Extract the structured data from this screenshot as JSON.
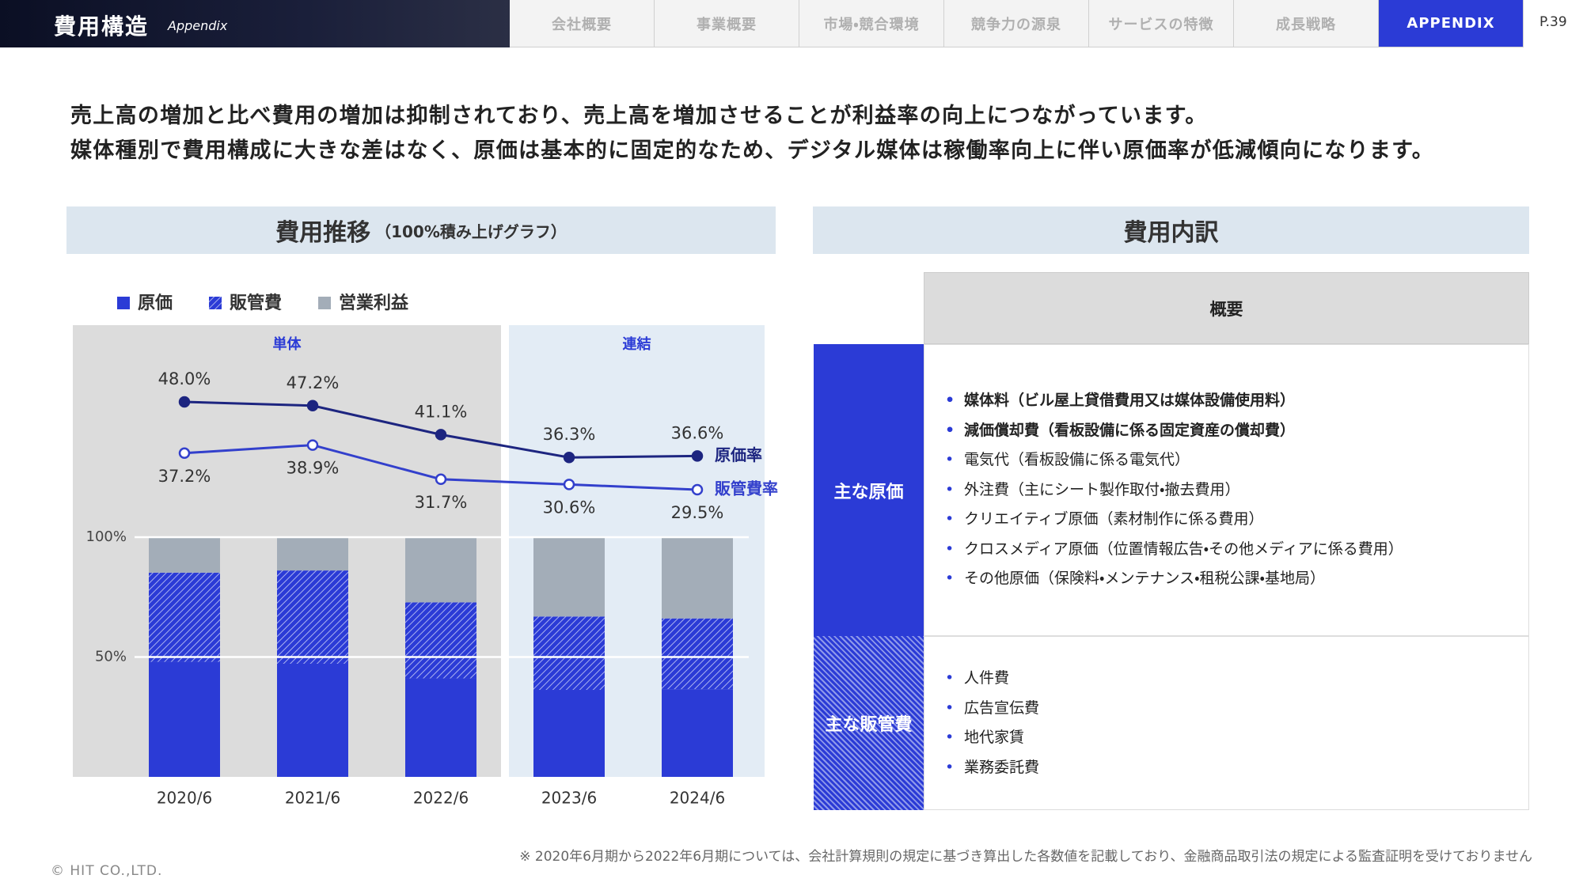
{
  "header": {
    "title": "費用構造",
    "subtitle": "Appendix",
    "page": "P.39",
    "tabs": [
      "会社概要",
      "事業概要",
      "市場・競合環境",
      "競争力の源泉",
      "サービスの特徴",
      "成長戦略",
      "APPENDIX"
    ],
    "active_tab": 6
  },
  "headline": [
    "売上高の増加と比べ費用の増加は抑制されており、売上高を増加させることが利益率の向上につながっています。",
    "媒体種別で費用構成に大きな差はなく、原価は基本的に固定的なため、デジタル媒体は稼働率向上に伴い原価率が低減傾向になります。"
  ],
  "chart_data": {
    "type": "bar",
    "stacked": true,
    "title": "費用推移",
    "subtitle": "（100%積み上げグラフ）",
    "categories": [
      "2020/6",
      "2021/6",
      "2022/6",
      "2023/6",
      "2024/6"
    ],
    "series": [
      {
        "name": "原価",
        "color": "#2b3bd6",
        "values": [
          48.0,
          47.2,
          41.1,
          36.3,
          36.6
        ]
      },
      {
        "name": "販管費",
        "color": "#2b3bd6",
        "pattern": "hatch",
        "values": [
          37.2,
          38.9,
          31.7,
          30.6,
          29.5
        ]
      },
      {
        "name": "営業利益",
        "color": "#a3adb8",
        "values": [
          14.8,
          13.9,
          27.2,
          33.1,
          33.9
        ]
      },
      {
        "name": "原価率",
        "type": "line",
        "color": "#1d2580",
        "marker": "filled",
        "label_position": "above",
        "values": [
          48.0,
          47.2,
          41.1,
          36.3,
          36.6
        ],
        "value_labels": [
          "48.0%",
          "47.2%",
          "41.1%",
          "36.3%",
          "36.6%"
        ]
      },
      {
        "name": "販管費率",
        "type": "line",
        "color": "#3340cc",
        "marker": "open",
        "label_position": "below",
        "values": [
          37.2,
          38.9,
          31.7,
          30.6,
          29.5
        ],
        "value_labels": [
          "37.2%",
          "38.9%",
          "31.7%",
          "30.6%",
          "29.5%"
        ]
      }
    ],
    "ylim": [
      0,
      100
    ],
    "yticks": [
      {
        "value": 50,
        "label": "50%"
      },
      {
        "value": 100,
        "label": "100%"
      }
    ],
    "grid": true,
    "regions": [
      {
        "label": "単体",
        "from": 0,
        "to": 2,
        "color": "#dcdcdc"
      },
      {
        "label": "連結",
        "from": 3,
        "to": 4,
        "color": "#e3ecf5"
      }
    ]
  },
  "breakdown": {
    "title": "費用内訳",
    "column": "概要",
    "rows": [
      {
        "label": "主な原価",
        "items": [
          {
            "text": "媒体料（ビル屋上貸借費用又は媒体設備使用料）",
            "bold": true
          },
          {
            "text": "減価償却費（看板設備に係る固定資産の償却費）",
            "bold": true
          },
          {
            "text": "電気代（看板設備に係る電気代）",
            "bold": false
          },
          {
            "text": "外注費（主にシート製作取付・撤去費用）",
            "bold": false
          },
          {
            "text": "クリエイティブ原価（素材制作に係る費用）",
            "bold": false
          },
          {
            "text": "クロスメディア原価（位置情報広告・その他メディアに係る費用）",
            "bold": false
          },
          {
            "text": "その他原価（保険料・メンテナンス・租税公課・基地局）",
            "bold": false
          }
        ]
      },
      {
        "label": "主な販管費",
        "items": [
          {
            "text": "人件費",
            "bold": false
          },
          {
            "text": "広告宣伝費",
            "bold": false
          },
          {
            "text": "地代家賃",
            "bold": false
          },
          {
            "text": "業務委託費",
            "bold": false
          }
        ]
      }
    ]
  },
  "footnote": "※ 2020年6月期から2022年6月期については、会社計算規則の規定に基づき算出した各数値を記載しており、金融商品取引法の規定による監査証明を受けておりません",
  "copyright": "© HIT CO.,LTD."
}
